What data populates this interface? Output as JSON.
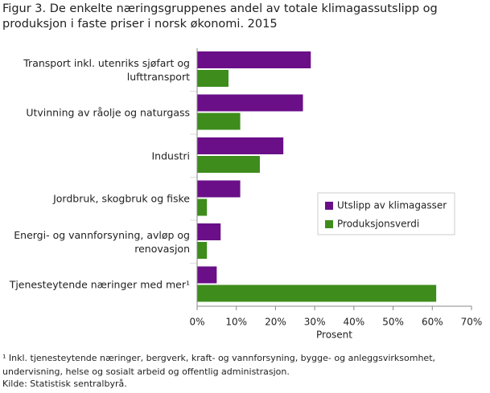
{
  "chart_data": {
    "type": "hbar",
    "title": "Figur 3. De enkelte næringsgruppenes andel av totale klimagassutslipp og produksjon i faste priser i norsk økonomi. 2015",
    "categories": [
      "Transport inkl. utenriks sjøfart og lufttransport",
      "Utvinning av råolje og naturgass",
      "Industri",
      "Jordbruk, skogbruk og fiske",
      "Energi- og vannforsyning, avløp og renovasjon",
      "Tjenesteytende næringer med mer¹"
    ],
    "series": [
      {
        "name": "Utslipp av klimagasser",
        "color": "#6a0f88",
        "values": [
          29,
          27,
          22,
          11,
          6,
          5
        ]
      },
      {
        "name": "Produksjonsverdi",
        "color": "#3e8c1c",
        "values": [
          8,
          11,
          16,
          2.5,
          2.5,
          61
        ]
      }
    ],
    "x_label": "Prosent",
    "xlim": [
      0,
      70
    ],
    "xticks": [
      {
        "value": 0,
        "label": "0%"
      },
      {
        "value": 10,
        "label": "10%"
      },
      {
        "value": 20,
        "label": "20%"
      },
      {
        "value": 30,
        "label": "30%"
      },
      {
        "value": 40,
        "label": "40%"
      },
      {
        "value": 50,
        "label": "50%"
      },
      {
        "value": 60,
        "label": "60%"
      },
      {
        "value": 70,
        "label": "70%"
      }
    ],
    "footnote": "¹ Inkl. tjenesteytende næringer, bergverk, kraft- og vannforsyning, bygge- og anleggsvirksomhet, undervisning, helse og sosialt arbeid og offentlig administrasjon.",
    "source": "Kilde: Statistisk sentralbyrå."
  }
}
